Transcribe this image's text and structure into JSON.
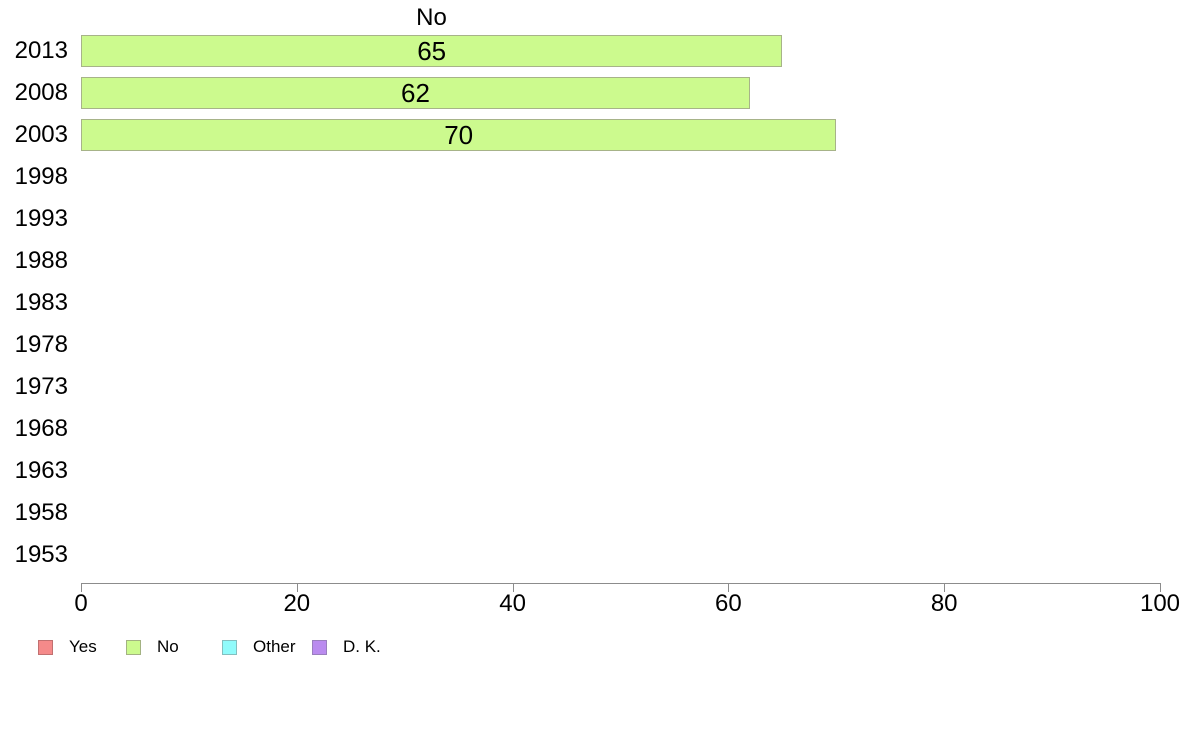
{
  "chart_data": {
    "type": "bar",
    "orientation": "horizontal",
    "title": "No",
    "categories": [
      "2013",
      "2008",
      "2003",
      "1998",
      "1993",
      "1988",
      "1983",
      "1978",
      "1973",
      "1968",
      "1963",
      "1958",
      "1953"
    ],
    "values": [
      65,
      62,
      70,
      null,
      null,
      null,
      null,
      null,
      null,
      null,
      null,
      null,
      null
    ],
    "bar_value_labels": [
      "65",
      "62",
      "70",
      "",
      "",
      "",
      "",
      "",
      "",
      "",
      "",
      "",
      ""
    ],
    "xlabel": "",
    "ylabel": "",
    "xlim": [
      0,
      100
    ],
    "x_ticks": [
      0,
      20,
      40,
      60,
      80,
      100
    ],
    "grid": false,
    "bar_fill": "#ccfa8e",
    "bar_border": "#a7b389",
    "axis_color": "#8c8c8c",
    "legend_position": "bottom-left",
    "legend": [
      {
        "label": "Yes",
        "fill": "#f58a8a",
        "border": "#c17070"
      },
      {
        "label": "No",
        "fill": "#ccfa8e",
        "border": "#a3b282"
      },
      {
        "label": "Other",
        "fill": "#90fbfb",
        "border": "#84bfbf"
      },
      {
        "label": "D. K.",
        "fill": "#ba8bef",
        "border": "#9a7fbe"
      }
    ]
  }
}
